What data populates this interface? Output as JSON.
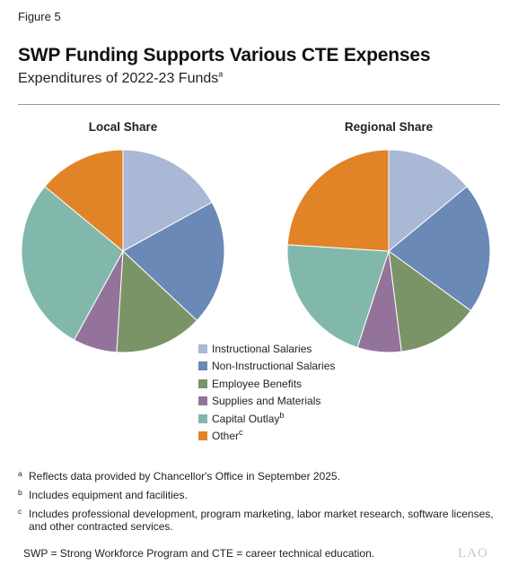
{
  "figure_label": "Figure 5",
  "title": "SWP Funding Supports Various CTE Expenses",
  "subtitle": {
    "text": "Expenditures of 2022-23 Funds",
    "sup": "a"
  },
  "colors": [
    "#a9b8d5",
    "#6a89b7",
    "#7a9468",
    "#94739a",
    "#82b8ab",
    "#e18427"
  ],
  "legend": [
    {
      "label": "Instructional Salaries",
      "sup": ""
    },
    {
      "label": "Non-Instructional Salaries",
      "sup": ""
    },
    {
      "label": "Employee Benefits",
      "sup": ""
    },
    {
      "label": "Supplies and Materials",
      "sup": ""
    },
    {
      "label": "Capital Outlay",
      "sup": "b"
    },
    {
      "label": "Other",
      "sup": "c"
    }
  ],
  "chart_data": [
    {
      "type": "pie",
      "title": "Local Share",
      "categories": [
        "Instructional Salaries",
        "Non-Instructional Salaries",
        "Employee Benefits",
        "Supplies and Materials",
        "Capital Outlay",
        "Other"
      ],
      "values": [
        17,
        20,
        14,
        7,
        28,
        14
      ]
    },
    {
      "type": "pie",
      "title": "Regional Share",
      "categories": [
        "Instructional Salaries",
        "Non-Instructional Salaries",
        "Employee Benefits",
        "Supplies and Materials",
        "Capital Outlay",
        "Other"
      ],
      "values": [
        14,
        21,
        13,
        7,
        21,
        24
      ]
    }
  ],
  "footnotes": [
    {
      "mark": "a",
      "text": "Reflects data provided by Chancellor's Office in September 2025."
    },
    {
      "mark": "b",
      "text": "Includes equipment and facilities."
    },
    {
      "mark": "c",
      "text": "Includes professional development, program marketing, labor market research, software licenses, and other contracted services."
    }
  ],
  "abbreviations": "SWP = Strong Workforce Program and CTE = career technical education.",
  "logo": "LAO"
}
